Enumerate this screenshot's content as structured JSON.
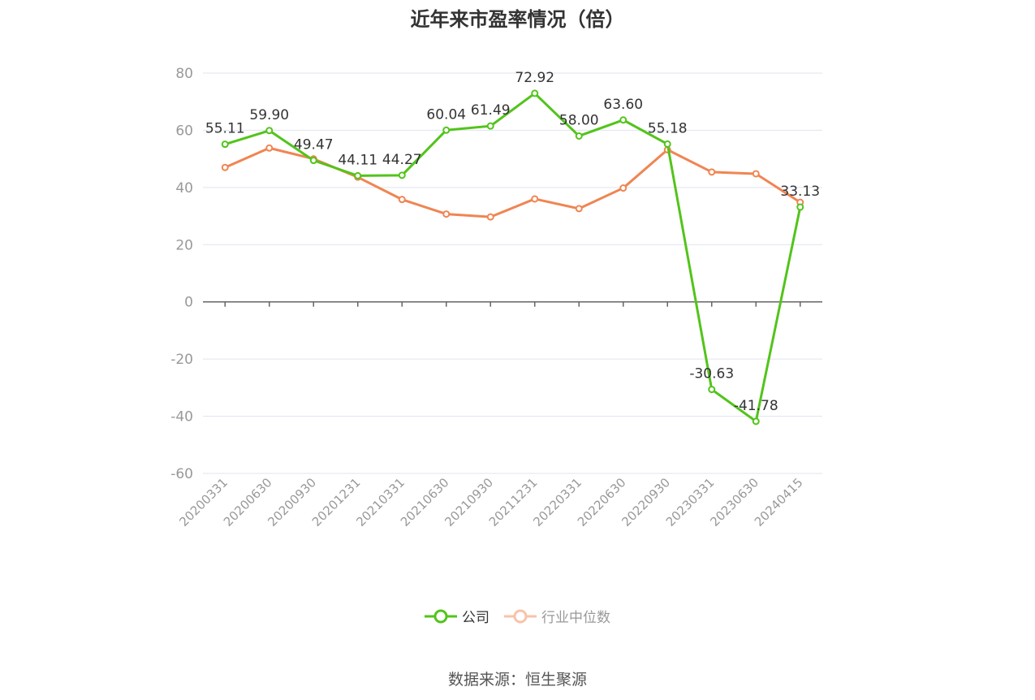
{
  "title": "近年来市盈率情况（倍）",
  "source": "数据来源：恒生聚源",
  "colors": {
    "company": "#52c41a",
    "industry": "#f08552",
    "grid": "#e0e3f0",
    "axis": "#666666",
    "tick_text": "#999999",
    "label_text": "#333333"
  },
  "chart_data": {
    "type": "line",
    "title": "近年来市盈率情况（倍）",
    "categories": [
      "20200331",
      "20200630",
      "20200930",
      "20201231",
      "20210331",
      "20210630",
      "20210930",
      "20211231",
      "20220331",
      "20220630",
      "20220930",
      "20230331",
      "20230630",
      "20240415"
    ],
    "ylim": [
      -60,
      80
    ],
    "yticks": [
      80,
      60,
      40,
      20,
      0,
      -20,
      -40,
      -60
    ],
    "grid": true,
    "legend_position": "bottom",
    "series": [
      {
        "name": "公司",
        "values": [
          55.11,
          59.9,
          49.47,
          44.11,
          44.27,
          60.04,
          61.49,
          72.92,
          58.0,
          63.6,
          55.18,
          -30.63,
          -41.78,
          33.13
        ],
        "labels": [
          "55.11",
          "59.90",
          "49.47",
          "44.11",
          "44.27",
          "60.04",
          "61.49",
          "72.92",
          "58.00",
          "63.60",
          "55.18",
          "-30.63",
          "-41.78",
          "33.13"
        ]
      },
      {
        "name": "行业中位数",
        "values": [
          47.0,
          53.8,
          50.0,
          43.6,
          35.8,
          30.7,
          29.7,
          36.0,
          32.6,
          39.8,
          53.2,
          45.4,
          44.8,
          34.8
        ]
      }
    ]
  }
}
